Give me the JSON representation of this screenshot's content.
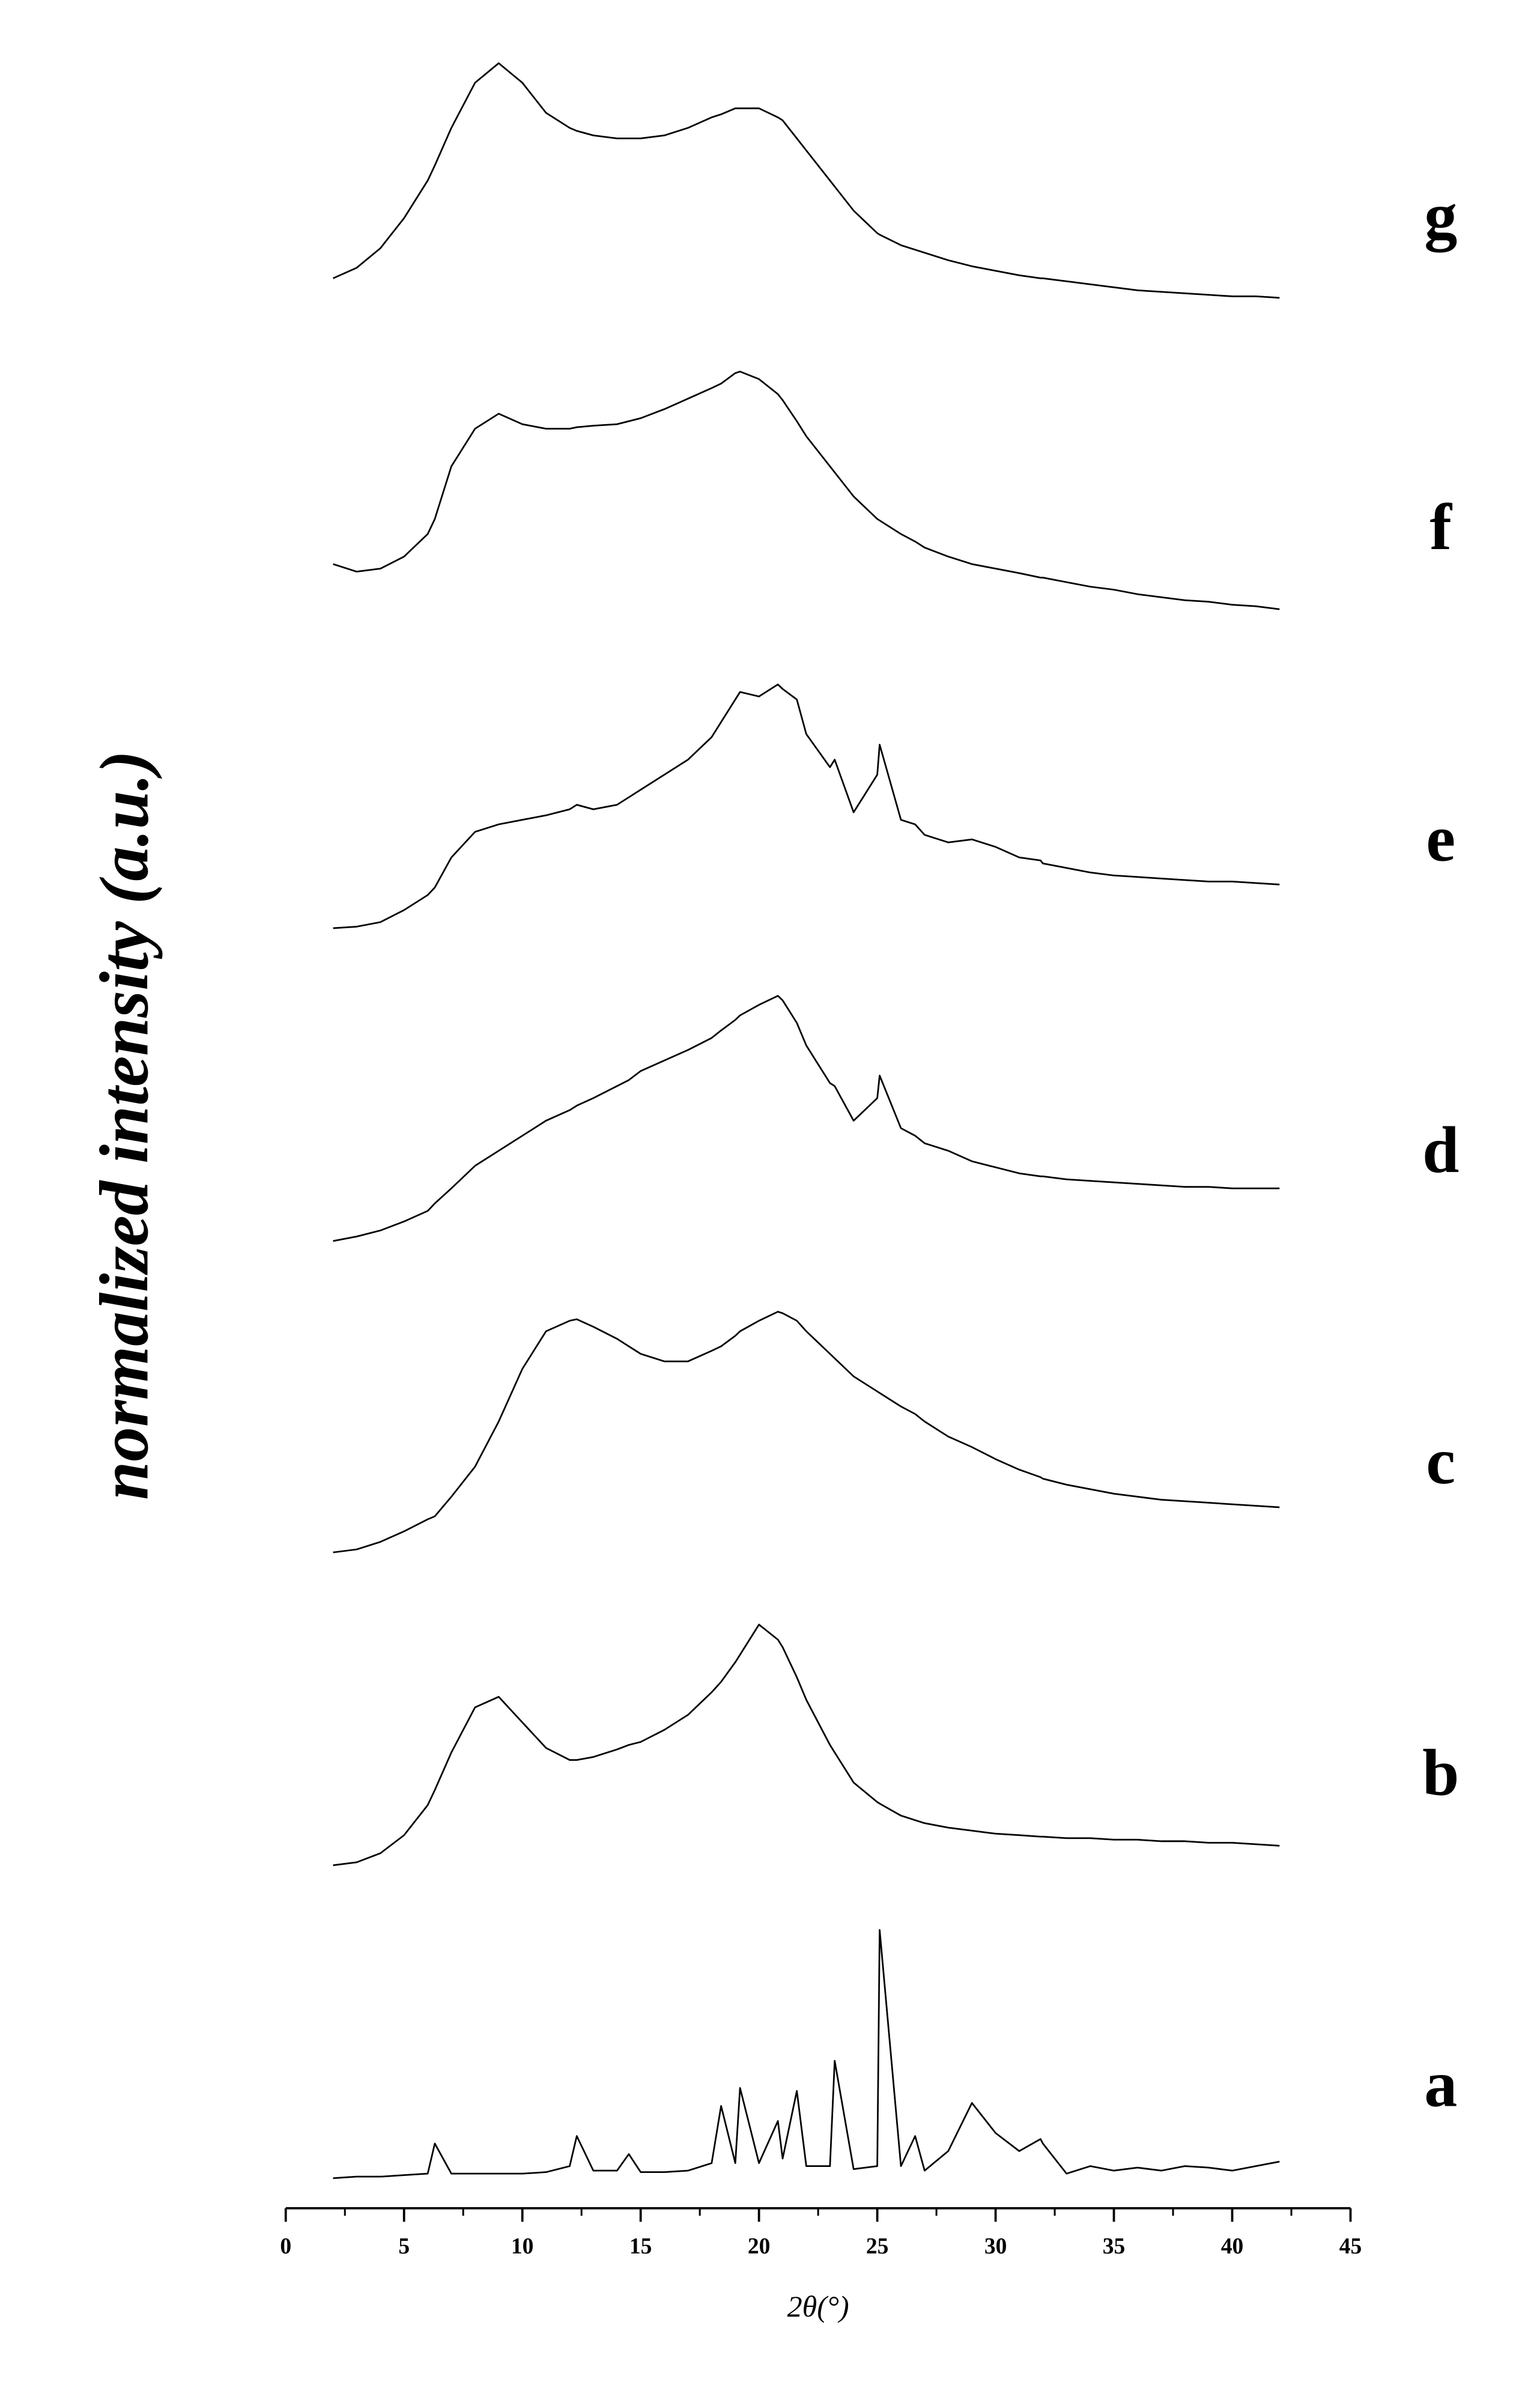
{
  "chart_data": {
    "type": "line",
    "x_label": "2θ(°)",
    "y_label": "normalized intensity (a.u.)",
    "xlim": [
      0,
      45
    ],
    "xticks": [
      0,
      5,
      10,
      15,
      20,
      25,
      30,
      35,
      40,
      45
    ],
    "ylim": [
      0,
      1440
    ],
    "x": [
      2,
      3,
      4,
      5,
      6,
      6.3,
      7,
      8,
      9,
      10,
      11,
      12,
      12.3,
      13,
      14,
      14.5,
      15,
      16,
      17,
      18,
      18.4,
      19,
      19.2,
      20,
      20.8,
      21,
      21.6,
      22,
      23,
      23.2,
      24,
      25,
      25.1,
      26,
      26.6,
      27,
      28,
      29,
      30,
      31,
      31.9,
      32,
      33,
      34,
      35,
      36,
      37,
      38,
      39,
      40,
      41,
      42
    ],
    "series": [
      {
        "name": "a",
        "color": "#000000",
        "values": [
          20,
          21,
          21,
          22,
          23,
          43,
          23,
          23,
          23,
          23,
          24,
          28,
          48,
          25,
          25,
          36,
          24,
          24,
          25,
          30,
          68,
          30,
          80,
          30,
          58,
          33,
          78,
          28,
          28,
          98,
          26,
          28,
          185,
          28,
          48,
          25,
          38,
          70,
          50,
          38,
          46,
          43,
          23,
          28,
          25,
          27,
          25,
          28,
          27,
          25,
          28,
          31
        ]
      },
      {
        "name": "b",
        "color": "#000000",
        "values": [
          228,
          230,
          236,
          248,
          268,
          278,
          303,
          333,
          340,
          323,
          306,
          298,
          298,
          300,
          305,
          308,
          310,
          318,
          328,
          343,
          350,
          363,
          368,
          388,
          378,
          373,
          353,
          338,
          308,
          303,
          283,
          270,
          269,
          261,
          258,
          256,
          253,
          251,
          249,
          248,
          247,
          247,
          246,
          246,
          245,
          245,
          244,
          244,
          243,
          243,
          242,
          241
        ]
      },
      {
        "name": "c",
        "color": "#000000",
        "values": [
          436,
          438,
          443,
          450,
          458,
          460,
          473,
          493,
          523,
          558,
          583,
          590,
          591,
          586,
          578,
          573,
          568,
          563,
          563,
          570,
          573,
          580,
          583,
          590,
          596,
          595,
          590,
          583,
          568,
          565,
          553,
          543,
          542,
          533,
          528,
          523,
          513,
          506,
          498,
          491,
          486,
          485,
          481,
          478,
          475,
          473,
          471,
          470,
          469,
          468,
          467,
          466
        ]
      },
      {
        "name": "d",
        "color": "#000000",
        "values": [
          643,
          646,
          650,
          656,
          663,
          668,
          678,
          693,
          703,
          713,
          723,
          730,
          733,
          738,
          746,
          750,
          756,
          763,
          770,
          778,
          783,
          790,
          793,
          800,
          806,
          803,
          788,
          773,
          748,
          746,
          723,
          738,
          753,
          718,
          713,
          708,
          703,
          696,
          692,
          688,
          686,
          686,
          684,
          683,
          682,
          681,
          680,
          679,
          679,
          678,
          678,
          678
        ]
      },
      {
        "name": "e",
        "color": "#000000",
        "values": [
          851,
          852,
          855,
          863,
          873,
          878,
          898,
          915,
          920,
          923,
          926,
          930,
          933,
          930,
          933,
          938,
          943,
          953,
          963,
          978,
          988,
          1003,
          1008,
          1005,
          1013,
          1010,
          1003,
          980,
          958,
          963,
          928,
          953,
          973,
          923,
          920,
          913,
          908,
          910,
          905,
          898,
          896,
          894,
          891,
          888,
          886,
          885,
          884,
          883,
          882,
          882,
          881,
          880
        ]
      },
      {
        "name": "f",
        "color": "#000000",
        "values": [
          1093,
          1088,
          1090,
          1098,
          1113,
          1123,
          1158,
          1183,
          1193,
          1186,
          1183,
          1183,
          1184,
          1185,
          1186,
          1188,
          1190,
          1196,
          1203,
          1210,
          1213,
          1220,
          1221,
          1216,
          1206,
          1202,
          1188,
          1178,
          1158,
          1154,
          1138,
          1123,
          1122,
          1113,
          1108,
          1104,
          1098,
          1093,
          1090,
          1087,
          1084,
          1084,
          1081,
          1078,
          1076,
          1073,
          1071,
          1069,
          1068,
          1066,
          1065,
          1063
        ]
      },
      {
        "name": "g",
        "color": "#000000",
        "values": [
          1283,
          1290,
          1303,
          1323,
          1348,
          1358,
          1383,
          1413,
          1426,
          1413,
          1393,
          1383,
          1381,
          1378,
          1376,
          1376,
          1376,
          1378,
          1383,
          1390,
          1392,
          1396,
          1396,
          1396,
          1390,
          1388,
          1376,
          1368,
          1348,
          1344,
          1328,
          1313,
          1312,
          1305,
          1302,
          1300,
          1295,
          1291,
          1288,
          1285,
          1283,
          1283,
          1281,
          1279,
          1277,
          1275,
          1274,
          1273,
          1272,
          1271,
          1271,
          1270
        ]
      }
    ]
  }
}
